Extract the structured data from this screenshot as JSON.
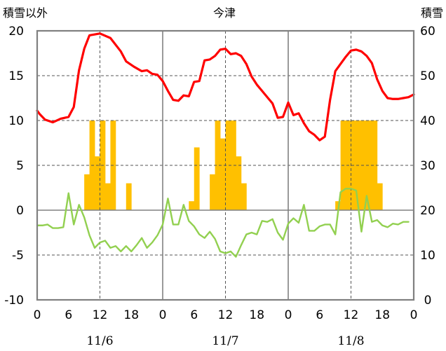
{
  "chart_data": {
    "type": "bar+line",
    "title": "今津",
    "y_left_label": "積雪以外",
    "y_right_label": "積雪",
    "y_left_range": [
      -10,
      20
    ],
    "y_left_ticks": [
      20,
      15,
      10,
      5,
      0,
      -5,
      -10
    ],
    "y_right_range": [
      0,
      60
    ],
    "y_right_ticks": [
      60,
      50,
      40,
      30,
      20,
      10,
      0
    ],
    "x_tick_labels": [
      "0",
      "6",
      "12",
      "18",
      "0",
      "6",
      "12",
      "18",
      "0",
      "6",
      "12",
      "18",
      "0"
    ],
    "date_labels": [
      "11/6",
      "11/7",
      "11/8"
    ],
    "x_hours_total": 72,
    "series": [
      {
        "kind": "bar",
        "color": "#FFC000",
        "axis": "left",
        "values": [
          0,
          0,
          0,
          0,
          0,
          0,
          0,
          0,
          0,
          4,
          10,
          6,
          10,
          3,
          10,
          0,
          0,
          3,
          0,
          0,
          0,
          0,
          0,
          0,
          0,
          0,
          0,
          0,
          0,
          1,
          7,
          0,
          0,
          4,
          10,
          8,
          10,
          10,
          6,
          3,
          0,
          0,
          0,
          0,
          0,
          0,
          0,
          0,
          0,
          0,
          0,
          0,
          0,
          0,
          0,
          0,
          0,
          1,
          10,
          10,
          10,
          10,
          10,
          10,
          10,
          3,
          0,
          0,
          0,
          0,
          0,
          0
        ]
      },
      {
        "kind": "line",
        "color": "#FF0000",
        "axis": "left",
        "points": [
          [
            0,
            11.1
          ],
          [
            0.5,
            10.7
          ],
          [
            1.5,
            10.1
          ],
          [
            3,
            9.8
          ],
          [
            4.5,
            10.2
          ],
          [
            6,
            10.4
          ],
          [
            7,
            11.5
          ],
          [
            8,
            15.6
          ],
          [
            9,
            18.0
          ],
          [
            10,
            19.5
          ],
          [
            12,
            19.7
          ],
          [
            14,
            19.2
          ],
          [
            16,
            17.7
          ],
          [
            17,
            16.6
          ],
          [
            18.5,
            16
          ],
          [
            20,
            15.5
          ],
          [
            21,
            15.6
          ],
          [
            22,
            15.2
          ],
          [
            23,
            15.1
          ],
          [
            24,
            14.4
          ],
          [
            25,
            13.3
          ],
          [
            26,
            12.3
          ],
          [
            27,
            12.2
          ],
          [
            28,
            12.8
          ],
          [
            29,
            12.7
          ],
          [
            30,
            14.3
          ],
          [
            31,
            14.4
          ],
          [
            32,
            16.7
          ],
          [
            33,
            16.8
          ],
          [
            34,
            17.2
          ],
          [
            35,
            17.9
          ],
          [
            36,
            18
          ],
          [
            37,
            17.4
          ],
          [
            38,
            17.5
          ],
          [
            39,
            17.2
          ],
          [
            40,
            16.3
          ],
          [
            41,
            14.9
          ],
          [
            42,
            14.0
          ],
          [
            43,
            13.3
          ],
          [
            44,
            12.6
          ],
          [
            45,
            11.9
          ],
          [
            46,
            10.3
          ],
          [
            47,
            10.4
          ],
          [
            48,
            12.0
          ],
          [
            49,
            10.6
          ],
          [
            50,
            10.8
          ],
          [
            51,
            9.7
          ],
          [
            52,
            8.8
          ],
          [
            53,
            8.4
          ],
          [
            54,
            7.8
          ],
          [
            55,
            8.2
          ],
          [
            56,
            12.3
          ],
          [
            57,
            15.5
          ],
          [
            58,
            16.3
          ],
          [
            59,
            17.1
          ],
          [
            60,
            17.8
          ],
          [
            61,
            17.9
          ],
          [
            62,
            17.7
          ],
          [
            63,
            17.2
          ],
          [
            64,
            16.4
          ],
          [
            65,
            14.6
          ],
          [
            66,
            13.3
          ],
          [
            67,
            12.5
          ],
          [
            68,
            12.4
          ],
          [
            69,
            12.4
          ],
          [
            70,
            12.5
          ],
          [
            71,
            12.6
          ],
          [
            72,
            12.9
          ]
        ]
      },
      {
        "kind": "line",
        "color": "#92D050",
        "axis": "left",
        "points": [
          [
            0,
            -1.7
          ],
          [
            1,
            -1.7
          ],
          [
            2,
            -1.6
          ],
          [
            3,
            -2.0
          ],
          [
            4,
            -2.0
          ],
          [
            5,
            -1.9
          ],
          [
            6,
            1.9
          ],
          [
            7,
            -1.6
          ],
          [
            8,
            0.6
          ],
          [
            9,
            -0.8
          ],
          [
            10,
            -2.8
          ],
          [
            11,
            -4.2
          ],
          [
            12,
            -3.6
          ],
          [
            13,
            -3.4
          ],
          [
            14,
            -4.2
          ],
          [
            15,
            -4.0
          ],
          [
            16,
            -4.6
          ],
          [
            17,
            -4.0
          ],
          [
            18,
            -4.6
          ],
          [
            19,
            -3.9
          ],
          [
            20,
            -3.1
          ],
          [
            21,
            -4.2
          ],
          [
            22,
            -3.6
          ],
          [
            23,
            -2.8
          ],
          [
            24,
            -1.6
          ],
          [
            25,
            1.3
          ],
          [
            26,
            -1.6
          ],
          [
            27,
            -1.6
          ],
          [
            28,
            0.6
          ],
          [
            29,
            -1.2
          ],
          [
            30,
            -1.8
          ],
          [
            31,
            -2.7
          ],
          [
            32,
            -3.1
          ],
          [
            33,
            -2.4
          ],
          [
            34,
            -3.2
          ],
          [
            35,
            -4.6
          ],
          [
            36,
            -4.8
          ],
          [
            37,
            -4.6
          ],
          [
            38,
            -5.2
          ],
          [
            39,
            -3.9
          ],
          [
            40,
            -2.7
          ],
          [
            41,
            -2.5
          ],
          [
            42,
            -2.7
          ],
          [
            43,
            -1.2
          ],
          [
            44,
            -1.3
          ],
          [
            45,
            -1.0
          ],
          [
            46,
            -2.5
          ],
          [
            47,
            -3.3
          ],
          [
            48,
            -1.5
          ],
          [
            49,
            -0.9
          ],
          [
            50,
            -1.4
          ],
          [
            51,
            0.6
          ],
          [
            52,
            -2.3
          ],
          [
            53,
            -2.3
          ],
          [
            54,
            -1.8
          ],
          [
            55,
            -1.6
          ],
          [
            56,
            -1.6
          ],
          [
            57,
            -2.7
          ],
          [
            58,
            2.0
          ],
          [
            59,
            2.4
          ],
          [
            60,
            2.4
          ],
          [
            61,
            2.2
          ],
          [
            62,
            -2.4
          ],
          [
            63,
            1.6
          ],
          [
            64,
            -1.3
          ],
          [
            65,
            -1.1
          ],
          [
            66,
            -1.7
          ],
          [
            67,
            -1.9
          ],
          [
            68,
            -1.5
          ],
          [
            69,
            -1.6
          ],
          [
            70,
            -1.3
          ],
          [
            71,
            -1.3
          ]
        ]
      }
    ]
  }
}
